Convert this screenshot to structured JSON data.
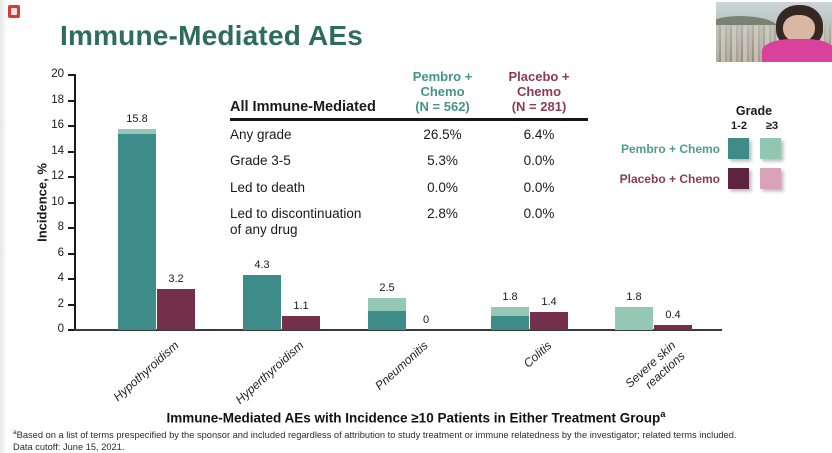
{
  "title": "Immune-Mediated AEs",
  "title_color": "#2e6c5c",
  "app_icon": {
    "name": "presentation-app-icon",
    "color": "#d63b3b"
  },
  "webcam": {
    "description": "presenter video thumbnail"
  },
  "table": {
    "header": {
      "row_label": "All Immune-Mediated",
      "pembro": "Pembro +\nChemo\n(N = 562)",
      "placebo": "Placebo +\nChemo\n(N = 281)"
    },
    "rows": [
      {
        "label": "Any grade",
        "pembro": "26.5%",
        "placebo": "6.4%"
      },
      {
        "label": "Grade 3-5",
        "pembro": "5.3%",
        "placebo": "0.0%"
      },
      {
        "label": "Led to death",
        "pembro": "0.0%",
        "placebo": "0.0%"
      },
      {
        "label": "Led to discontinuation\nof any drug",
        "pembro": "2.8%",
        "placebo": "0.0%"
      }
    ]
  },
  "legend": {
    "grade_header": "Grade",
    "col_labels": [
      "1-2",
      "≥3"
    ],
    "rows": [
      {
        "label": "Pembro + Chemo",
        "text_color": "#4f9c8e",
        "swatch_dark": "#3e8c8a",
        "swatch_light": "#92c6b3"
      },
      {
        "label": "Placebo + Chemo",
        "text_color": "#8c3a54",
        "swatch_dark": "#5e2440",
        "swatch_light": "#d9a2b6"
      }
    ]
  },
  "chart_data": {
    "type": "bar",
    "stacked": true,
    "title": "",
    "xlabel": "",
    "ylabel": "Incidence, %",
    "ylim": [
      0,
      20
    ],
    "ytick_step": 2,
    "grid": false,
    "legend_position": "right",
    "categories": [
      "Hypothyroidism",
      "Hyperthyroidism",
      "Pneumonitis",
      "Colitis",
      "Severe skin\nreactions"
    ],
    "series": [
      {
        "name": "Pembro + Chemo, Grade 1-2",
        "color": "#3e8c8a",
        "values": [
          15.4,
          4.3,
          1.5,
          1.1,
          0
        ]
      },
      {
        "name": "Pembro + Chemo, Grade ≥3",
        "color": "#95c7b5",
        "values": [
          0.4,
          0,
          1.0,
          0.7,
          1.8
        ]
      },
      {
        "name": "Placebo + Chemo, Grade 1-2",
        "color": "#74304a",
        "values": [
          3.2,
          1.1,
          0,
          1.4,
          0.4
        ]
      },
      {
        "name": "Placebo + Chemo, Grade ≥3",
        "color": "#d9a2b6",
        "values": [
          0,
          0,
          0,
          0,
          0
        ]
      }
    ],
    "bar_totals": {
      "pembro": [
        "15.8",
        "4.3",
        "2.5",
        "1.8",
        "1.8"
      ],
      "placebo": [
        "3.2",
        "1.1",
        "0",
        "1.4",
        "0.4"
      ]
    }
  },
  "caption": {
    "text": "Immune-Mediated AEs with Incidence ≥10 Patients in Either Treatment Group",
    "superscript": "a"
  },
  "footnotes": {
    "marker": "a",
    "line1": "Based on a list of terms prespecified by the sponsor and included regardless of attribution to study treatment or immune relatedness by the investigator; related terms included.",
    "line2": "Data cutoff: June 15, 2021."
  }
}
